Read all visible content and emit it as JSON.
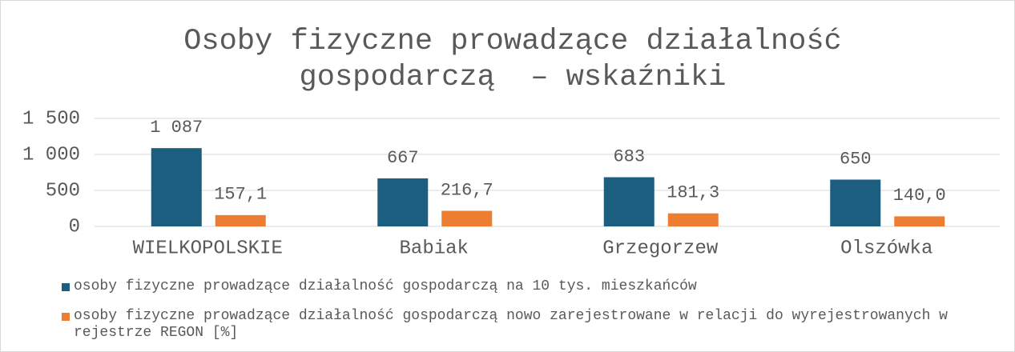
{
  "chart_data": {
    "type": "bar",
    "title": "Osoby fizyczne prowadzące działalność gospodarczą  – wskaźniki",
    "categories": [
      "WIELKOPOLSKIE",
      "Babiak",
      "Grzegorzew",
      "Olszówka"
    ],
    "series": [
      {
        "name": "osoby fizyczne prowadzące działalność gospodarczą na 10 tys. mieszkańców",
        "color": "#1b5e80",
        "values": [
          1087,
          667,
          683,
          650
        ],
        "value_labels": [
          "1 087",
          "667",
          "683",
          "650"
        ]
      },
      {
        "name": "osoby fizyczne prowadzące działalność gospodarczą nowo zarejestrowane w relacji do wyrejestrowanych w rejestrze REGON [%]",
        "color": "#ed7d31",
        "values": [
          157.1,
          216.7,
          181.3,
          140.0
        ],
        "value_labels": [
          "157,1",
          "216,7",
          "181,3",
          "140,0"
        ]
      }
    ],
    "ylim": [
      0,
      1500
    ],
    "yticks": [
      0,
      500,
      {
        "value": 1000,
        "label": "1 000"
      },
      {
        "value": 1500,
        "label": "1 500"
      }
    ],
    "grid": true,
    "legend": "bottom"
  }
}
